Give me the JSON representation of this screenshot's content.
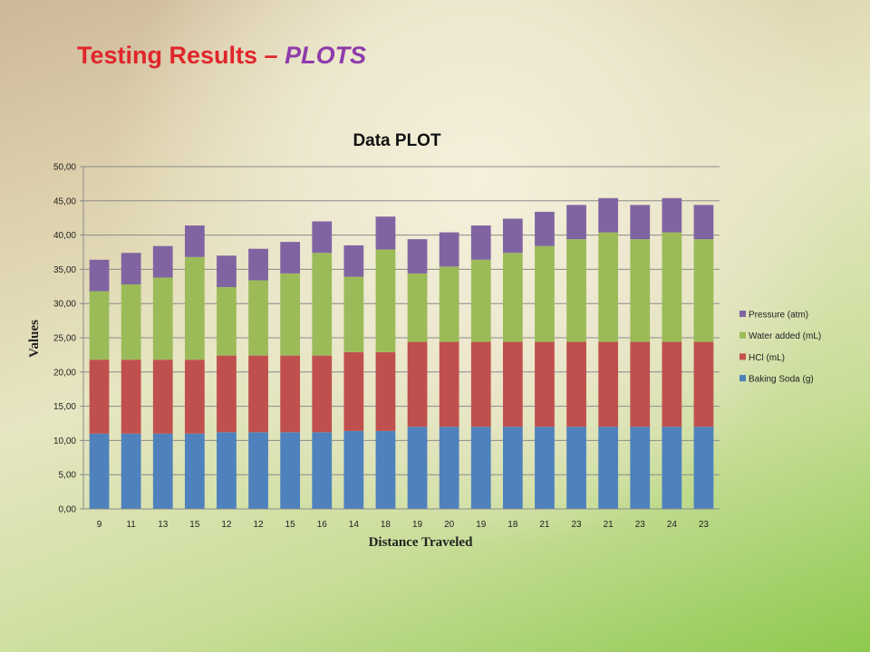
{
  "slide": {
    "title_main": "Testing Results – ",
    "title_emphasis": "PLOTS"
  },
  "colors": {
    "title_red": "#e0262b",
    "title_purple": "#8e3bab",
    "baking_soda": "#4f81bd",
    "hcl": "#c0504d",
    "water": "#9bbb59",
    "pressure": "#8064a2"
  },
  "chart_data": {
    "type": "bar",
    "stacked": true,
    "title": "Data PLOT",
    "xlabel": "Distance Traveled",
    "ylabel": "Values",
    "ylim": [
      0,
      50
    ],
    "ytick_step": 5,
    "ytick_labels": [
      "0,00",
      "5,00",
      "10,00",
      "15,00",
      "20,00",
      "25,00",
      "30,00",
      "35,00",
      "40,00",
      "45,00",
      "50,00"
    ],
    "grid": true,
    "legend_position": "right",
    "categories": [
      "9",
      "11",
      "13",
      "15",
      "12",
      "12",
      "15",
      "16",
      "14",
      "18",
      "19",
      "20",
      "19",
      "18",
      "21",
      "23",
      "21",
      "23",
      "24",
      "23"
    ],
    "series": [
      {
        "name": "Baking Soda (g)",
        "color": "#4f81bd",
        "values": [
          11,
          11,
          11,
          11,
          11.2,
          11.2,
          11.2,
          11.2,
          11.4,
          11.4,
          12,
          12,
          12,
          12,
          12,
          12,
          12,
          12,
          12,
          12
        ]
      },
      {
        "name": "HCl (mL)",
        "color": "#c0504d",
        "values": [
          10.8,
          10.8,
          10.8,
          10.8,
          11.2,
          11.2,
          11.2,
          11.2,
          11.5,
          11.5,
          12.4,
          12.4,
          12.4,
          12.4,
          12.4,
          12.4,
          12.4,
          12.4,
          12.4,
          12.4
        ]
      },
      {
        "name": "Water added (mL)",
        "color": "#9bbb59",
        "values": [
          10,
          11,
          12,
          15,
          10,
          11,
          12,
          15,
          11,
          15,
          10,
          11,
          12,
          13,
          14,
          15,
          16,
          15,
          16,
          15
        ]
      },
      {
        "name": "Pressure (atm)",
        "color": "#8064a2",
        "values": [
          4.6,
          4.6,
          4.6,
          4.6,
          4.6,
          4.6,
          4.6,
          4.6,
          4.6,
          4.8,
          5,
          5,
          5,
          5,
          5,
          5,
          5,
          5,
          5,
          5
        ]
      }
    ]
  }
}
